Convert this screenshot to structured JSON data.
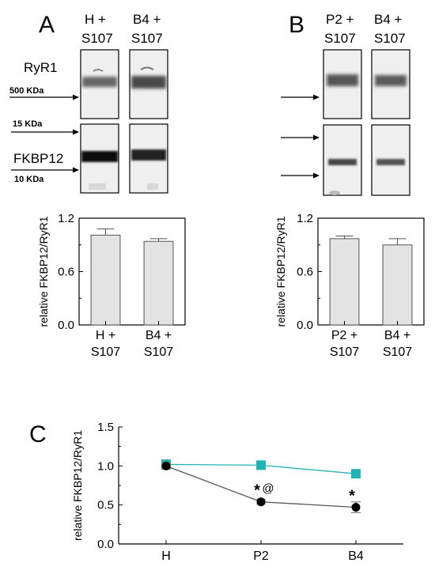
{
  "panels": {
    "A": {
      "letter": "A",
      "lanes": [
        "H +",
        "S107",
        "B4 +",
        "S107"
      ],
      "blot_labels": {
        "top": "RyR1",
        "bottom": "FKBP12"
      },
      "markers": [
        "500 KDa",
        "15 KDa",
        "10 KDa"
      ]
    },
    "B": {
      "letter": "B",
      "lanes": [
        "P2 +",
        "S107",
        "B4 +",
        "S107"
      ]
    },
    "C": {
      "letter": "C"
    }
  },
  "chart_data": [
    {
      "panel": "A",
      "type": "bar",
      "categories": [
        "H +\nS107",
        "B4 +\nS107"
      ],
      "values": [
        1.01,
        0.94
      ],
      "errors": [
        0.07,
        0.03
      ],
      "ylabel": "relative FKBP12/RyR1",
      "ylim": [
        0,
        1.2
      ],
      "yticks": [
        "0.0",
        "0.6",
        "1.2"
      ],
      "bar_color": "#e3e3e3"
    },
    {
      "panel": "B",
      "type": "bar",
      "categories": [
        "P2 +\nS107",
        "B4 +\nS107"
      ],
      "values": [
        0.97,
        0.9
      ],
      "errors": [
        0.03,
        0.07
      ],
      "ylabel": "relative FKBP12/RyR1",
      "ylim": [
        0,
        1.2
      ],
      "yticks": [
        "0.0",
        "0.6",
        "1.2"
      ],
      "bar_color": "#e3e3e3"
    },
    {
      "panel": "C",
      "type": "line",
      "categories": [
        "H",
        "P2",
        "B4"
      ],
      "ylabel": "relative FKBP12/RyR1",
      "ylim": [
        0,
        1.5
      ],
      "yticks": [
        "0.0",
        "0.5",
        "1.0",
        "1.5"
      ],
      "series": [
        {
          "values": [
            1.02,
            1.01,
            0.9
          ],
          "errors": [
            0.06,
            0.05,
            0.05
          ],
          "color": "#22b3b3",
          "marker": "square"
        },
        {
          "values": [
            1.0,
            0.54,
            0.47
          ],
          "errors": [
            0.04,
            0.03,
            0.07
          ],
          "color": "#000000",
          "marker": "circle"
        }
      ],
      "annotations": [
        {
          "category": "P2",
          "text": "*",
          "suffix": "@"
        },
        {
          "category": "B4",
          "text": "*"
        }
      ]
    }
  ]
}
